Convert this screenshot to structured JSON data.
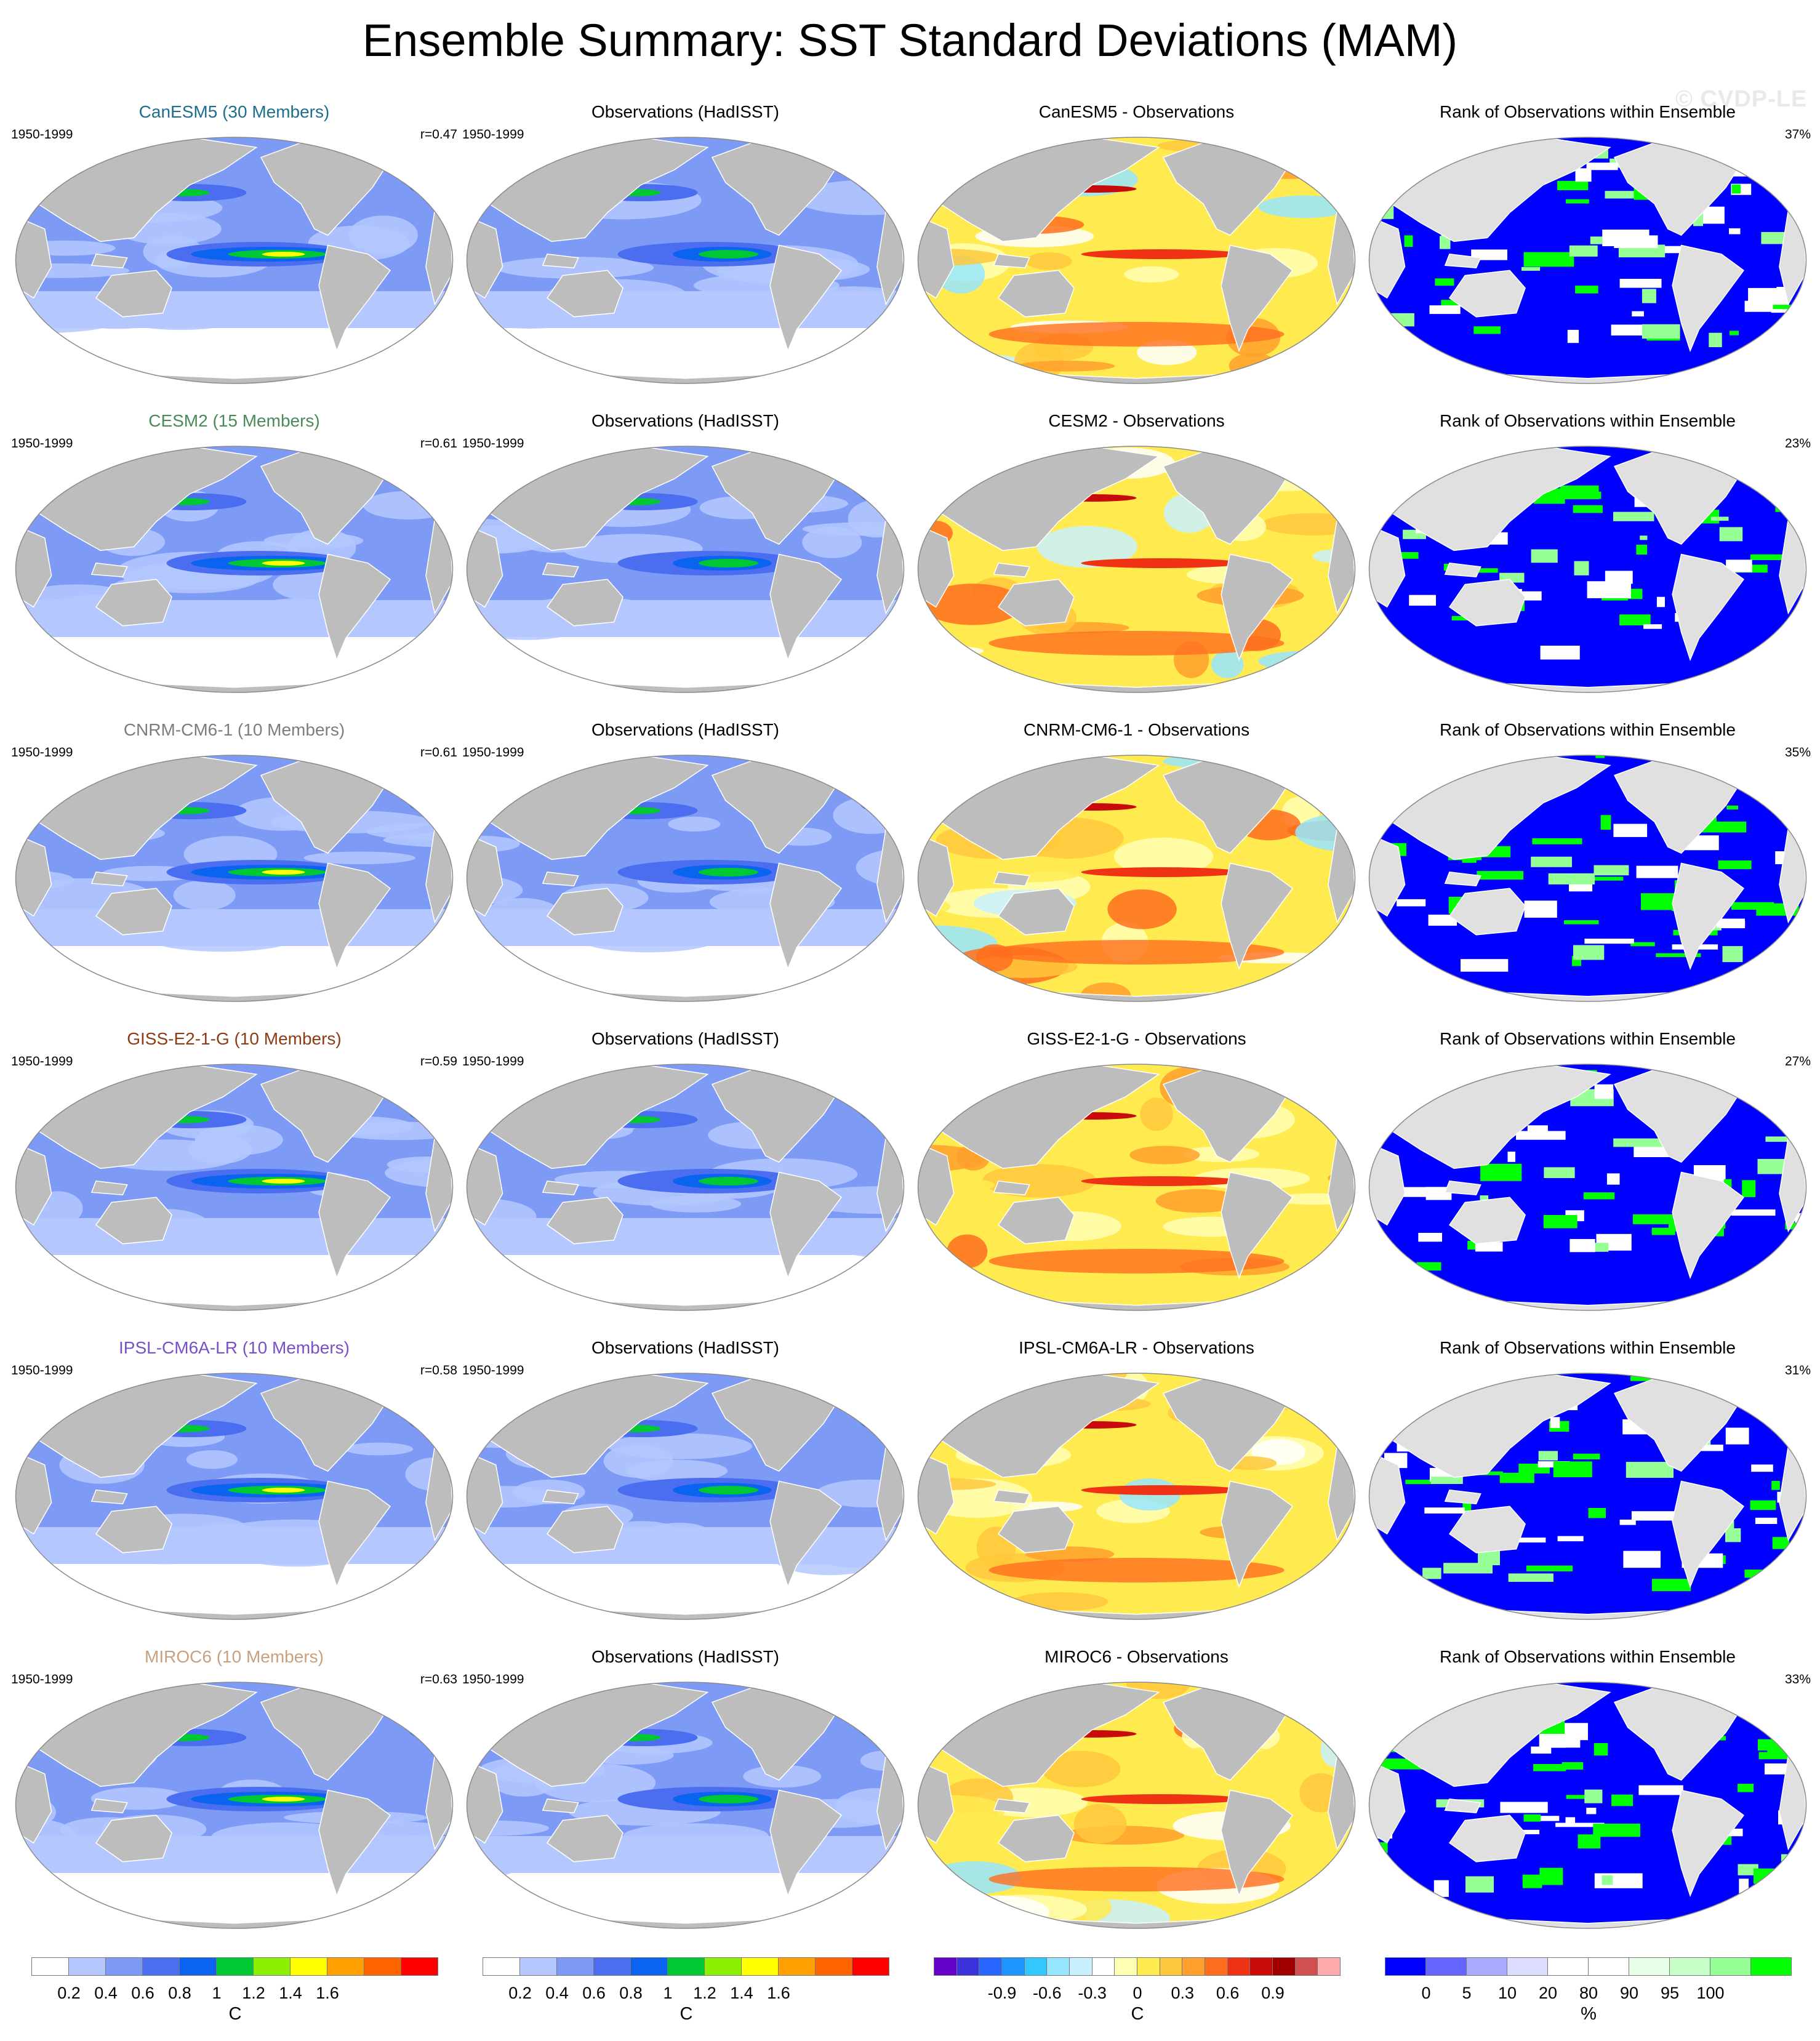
{
  "figure": {
    "title": "Ensemble Summary: SST Standard Deviations (MAM)",
    "watermark": "© CVDP-LE"
  },
  "colors": {
    "land": "#bdbdbd",
    "coast": "#ffffff",
    "ocean_outline": "#8a8a8a",
    "std_scale": [
      "#ffffff",
      "#b4c8ff",
      "#7d9bf5",
      "#4b6ef0",
      "#0a64f0",
      "#00c832",
      "#8cf000",
      "#ffff00",
      "#ffa000",
      "#ff6400",
      "#ff0000"
    ],
    "diff_scale": [
      "#6400c8",
      "#3c32dc",
      "#2864ff",
      "#1e96ff",
      "#32c8ff",
      "#96e6ff",
      "#c8f0ff",
      "#ffffff",
      "#ffffb4",
      "#ffeb50",
      "#ffc83c",
      "#ffa02d",
      "#ff6e1e",
      "#f03214",
      "#c80a0a",
      "#a00000",
      "#d05050",
      "#ffaaaa"
    ],
    "rank_scale": [
      "#0000ff",
      "#6464ff",
      "#aaaaff",
      "#dcdcff",
      "#ffffff",
      "#ffffff",
      "#e6ffe6",
      "#c8ffc8",
      "#96ff96",
      "#00ff00"
    ]
  },
  "rows": [
    {
      "model_title": "CanESM5 (30 Members)",
      "model_title_color": "#1e6e8c",
      "years": "1950-1999",
      "r": "r=0.47",
      "obs_title": "Observations (HadISST)",
      "obs_years": "1950-1999",
      "diff_title": "CanESM5 - Observations",
      "rank_title": "Rank of Observations within Ensemble",
      "rank_pct": "37%"
    },
    {
      "model_title": "CESM2 (15 Members)",
      "model_title_color": "#4a8a5a",
      "years": "1950-1999",
      "r": "r=0.61",
      "obs_title": "Observations (HadISST)",
      "obs_years": "1950-1999",
      "diff_title": "CESM2 - Observations",
      "rank_title": "Rank of Observations within Ensemble",
      "rank_pct": "23%"
    },
    {
      "model_title": "CNRM-CM6-1 (10 Members)",
      "model_title_color": "#7d7d7d",
      "years": "1950-1999",
      "r": "r=0.61",
      "obs_title": "Observations (HadISST)",
      "obs_years": "1950-1999",
      "diff_title": "CNRM-CM6-1 - Observations",
      "rank_title": "Rank of Observations within Ensemble",
      "rank_pct": "35%"
    },
    {
      "model_title": "GISS-E2-1-G (10 Members)",
      "model_title_color": "#8c3c14",
      "years": "1950-1999",
      "r": "r=0.59",
      "obs_title": "Observations (HadISST)",
      "obs_years": "1950-1999",
      "diff_title": "GISS-E2-1-G - Observations",
      "rank_title": "Rank of Observations within Ensemble",
      "rank_pct": "27%"
    },
    {
      "model_title": "IPSL-CM6A-LR (10 Members)",
      "model_title_color": "#7850c8",
      "years": "1950-1999",
      "r": "r=0.58",
      "obs_title": "Observations (HadISST)",
      "obs_years": "1950-1999",
      "diff_title": "IPSL-CM6A-LR - Observations",
      "rank_title": "Rank of Observations within Ensemble",
      "rank_pct": "31%"
    },
    {
      "model_title": "MIROC6 (10 Members)",
      "model_title_color": "#c8a07d",
      "years": "1950-1999",
      "r": "r=0.63",
      "obs_title": "Observations (HadISST)",
      "obs_years": "1950-1999",
      "diff_title": "MIROC6 - Observations",
      "rank_title": "Rank of Observations within Ensemble",
      "rank_pct": "33%"
    }
  ],
  "colorbars": [
    {
      "id": "std-model",
      "unit": "C",
      "ticks": [
        "0.2",
        "0.4",
        "0.6",
        "0.8",
        "1",
        "1.2",
        "1.4",
        "1.6"
      ]
    },
    {
      "id": "std-obs",
      "unit": "C",
      "ticks": [
        "0.2",
        "0.4",
        "0.6",
        "0.8",
        "1",
        "1.2",
        "1.4",
        "1.6"
      ]
    },
    {
      "id": "diff",
      "unit": "C",
      "ticks": [
        "-0.9",
        "-0.6",
        "-0.3",
        "0",
        "0.3",
        "0.6",
        "0.9"
      ]
    },
    {
      "id": "rank",
      "unit": "%",
      "ticks": [
        "0",
        "5",
        "10",
        "20",
        "80",
        "90",
        "95",
        "100"
      ]
    }
  ]
}
